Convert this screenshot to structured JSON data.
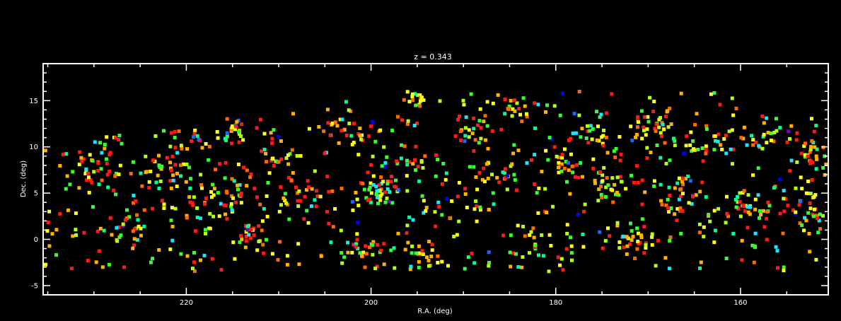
{
  "chart_data": {
    "type": "scatter",
    "title": "z = 0.343",
    "xlabel": "R.A. (deg)",
    "ylabel": "Dec. (deg)",
    "xlim": [
      235.5,
      150.5
    ],
    "ylim": [
      -6,
      19
    ],
    "x_ticks": [
      220,
      200,
      180,
      160
    ],
    "x_tick_labels": [
      "220",
      "200",
      "180",
      "160"
    ],
    "y_ticks": [
      -5,
      0,
      5,
      10,
      15
    ],
    "y_tick_labels": [
      "-5",
      "0",
      "5",
      "10",
      "15"
    ],
    "grid": false,
    "legend": "none",
    "colors": {
      "background": "#000000",
      "axes": "#ffffff",
      "point_palette": [
        "#ff1a1a",
        "#ff6a00",
        "#ffb300",
        "#ffff1a",
        "#b3ff1a",
        "#33ff33",
        "#00ff99",
        "#19e6ff",
        "#1a66ff",
        "#0000ff",
        "#7a00cc"
      ]
    },
    "clusters": [
      {
        "ra": 230,
        "dec": 7.5,
        "count": 30,
        "spread": 3.5
      },
      {
        "ra": 226,
        "dec": 1.5,
        "count": 18,
        "spread": 2.5
      },
      {
        "ra": 223,
        "dec": 7,
        "count": 20,
        "spread": 2.5
      },
      {
        "ra": 220,
        "dec": 10,
        "count": 14,
        "spread": 2.5
      },
      {
        "ra": 216,
        "dec": 5,
        "count": 40,
        "spread": 4.5
      },
      {
        "ra": 215,
        "dec": 12,
        "count": 18,
        "spread": 2
      },
      {
        "ra": 213,
        "dec": 0.5,
        "count": 20,
        "spread": 2.5
      },
      {
        "ra": 210,
        "dec": 9,
        "count": 24,
        "spread": 3.5
      },
      {
        "ra": 207,
        "dec": 4,
        "count": 20,
        "spread": 3
      },
      {
        "ra": 203,
        "dec": 12,
        "count": 26,
        "spread": 3
      },
      {
        "ra": 201,
        "dec": -1,
        "count": 26,
        "spread": 2.5
      },
      {
        "ra": 199,
        "dec": 5,
        "count": 40,
        "spread": 3
      },
      {
        "ra": 196,
        "dec": 8,
        "count": 24,
        "spread": 2.5
      },
      {
        "ra": 195,
        "dec": 15,
        "count": 14,
        "spread": 1.5
      },
      {
        "ra": 194,
        "dec": -2,
        "count": 20,
        "spread": 2.5
      },
      {
        "ra": 191,
        "dec": 4,
        "count": 24,
        "spread": 4
      },
      {
        "ra": 189,
        "dec": 12,
        "count": 22,
        "spread": 3
      },
      {
        "ra": 186,
        "dec": 7,
        "count": 22,
        "spread": 3
      },
      {
        "ra": 184,
        "dec": 14,
        "count": 16,
        "spread": 2
      },
      {
        "ra": 182,
        "dec": 0,
        "count": 20,
        "spread": 3
      },
      {
        "ra": 179,
        "dec": 8,
        "count": 24,
        "spread": 3.5
      },
      {
        "ra": 176,
        "dec": 12,
        "count": 20,
        "spread": 3
      },
      {
        "ra": 174,
        "dec": 6,
        "count": 36,
        "spread": 3
      },
      {
        "ra": 172,
        "dec": 0,
        "count": 30,
        "spread": 2.5
      },
      {
        "ra": 170,
        "dec": 12,
        "count": 26,
        "spread": 3
      },
      {
        "ra": 167,
        "dec": 5,
        "count": 30,
        "spread": 3.5
      },
      {
        "ra": 164,
        "dec": 10,
        "count": 22,
        "spread": 3
      },
      {
        "ra": 160,
        "dec": 4,
        "count": 26,
        "spread": 3.5
      },
      {
        "ra": 157,
        "dec": 11,
        "count": 18,
        "spread": 2.5
      },
      {
        "ra": 154,
        "dec": 3,
        "count": 30,
        "spread": 3.5
      },
      {
        "ra": 152,
        "dec": 9,
        "count": 22,
        "spread": 2.5
      }
    ],
    "background_points": 560,
    "random_seed": 343
  }
}
